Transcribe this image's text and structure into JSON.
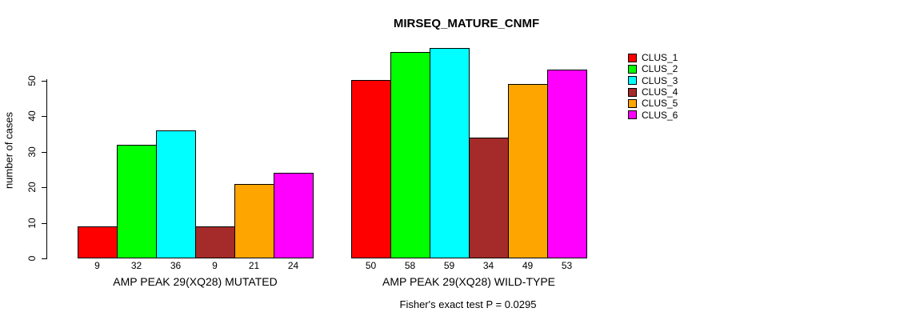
{
  "chart_data": {
    "type": "bar",
    "title": "MIRSEQ_MATURE_CNMF",
    "ylabel": "number of cases",
    "yticks": [
      0,
      10,
      20,
      30,
      40,
      50
    ],
    "ylim": [
      0,
      59
    ],
    "grid": false,
    "legend_position": "right",
    "series_names": [
      "CLUS_1",
      "CLUS_2",
      "CLUS_3",
      "CLUS_4",
      "CLUS_5",
      "CLUS_6"
    ],
    "colors": [
      "#FF0000",
      "#00FF00",
      "#00FFFF",
      "#A52A2A",
      "#FFA500",
      "#FF00FF"
    ],
    "groups": [
      {
        "label": "AMP PEAK 29(XQ28) MUTATED",
        "values": [
          9,
          32,
          36,
          9,
          21,
          24
        ]
      },
      {
        "label": "AMP PEAK 29(XQ28) WILD-TYPE",
        "values": [
          50,
          58,
          59,
          34,
          49,
          53
        ]
      }
    ],
    "footnote": "Fisher's exact test P = 0.0295"
  }
}
